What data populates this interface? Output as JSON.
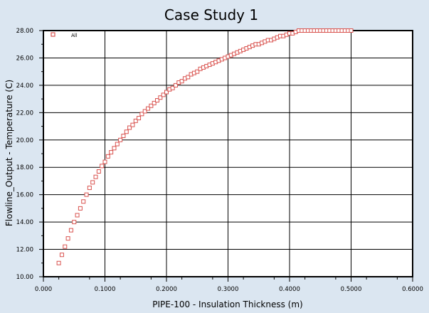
{
  "chart_data": {
    "type": "scatter",
    "title": "Case Study 1",
    "xlabel": "PIPE-100 - Insulation Thickness (m)",
    "ylabel": "Flowline_Output - Temperature (C)",
    "xlim": [
      0,
      0.6
    ],
    "ylim": [
      10,
      28
    ],
    "x_ticks": [
      "0.000",
      "0.1000",
      "0.2000",
      "0.3000",
      "0.4000",
      "0.5000",
      "0.6000"
    ],
    "y_ticks": [
      "10.00",
      "12.00",
      "14.00",
      "16.00",
      "18.00",
      "20.00",
      "22.00",
      "24.00",
      "26.00",
      "28.00"
    ],
    "grid": true,
    "legend": "top-left",
    "series": [
      {
        "name": "All",
        "marker": "open-square",
        "color": "#d9534f",
        "x": [
          0.025,
          0.03,
          0.035,
          0.04,
          0.045,
          0.05,
          0.055,
          0.06,
          0.065,
          0.07,
          0.075,
          0.08,
          0.085,
          0.09,
          0.095,
          0.1,
          0.105,
          0.11,
          0.115,
          0.12,
          0.125,
          0.13,
          0.135,
          0.14,
          0.145,
          0.15,
          0.155,
          0.16,
          0.165,
          0.17,
          0.175,
          0.18,
          0.185,
          0.19,
          0.195,
          0.2,
          0.205,
          0.21,
          0.215,
          0.22,
          0.225,
          0.23,
          0.235,
          0.24,
          0.245,
          0.25,
          0.255,
          0.26,
          0.265,
          0.27,
          0.275,
          0.28,
          0.285,
          0.29,
          0.295,
          0.3,
          0.305,
          0.31,
          0.315,
          0.32,
          0.325,
          0.33,
          0.335,
          0.34,
          0.345,
          0.35,
          0.355,
          0.36,
          0.365,
          0.37,
          0.375,
          0.38,
          0.385,
          0.39,
          0.395,
          0.4,
          0.405,
          0.41,
          0.415,
          0.42,
          0.425,
          0.43,
          0.435,
          0.44,
          0.445,
          0.45,
          0.455,
          0.46,
          0.465,
          0.47,
          0.475,
          0.48,
          0.485,
          0.49,
          0.495,
          0.5
        ],
        "y": [
          11.0,
          11.6,
          12.2,
          12.8,
          13.4,
          14.0,
          14.5,
          15.0,
          15.5,
          16.0,
          16.5,
          16.9,
          17.3,
          17.7,
          18.1,
          18.4,
          18.8,
          19.1,
          19.4,
          19.7,
          20.0,
          20.3,
          20.6,
          20.9,
          21.1,
          21.4,
          21.6,
          21.9,
          22.1,
          22.3,
          22.5,
          22.7,
          22.9,
          23.1,
          23.3,
          23.5,
          23.7,
          23.8,
          24.0,
          24.2,
          24.3,
          24.5,
          24.6,
          24.8,
          24.9,
          25.0,
          25.2,
          25.3,
          25.4,
          25.5,
          25.6,
          25.7,
          25.8,
          25.9,
          26.0,
          26.1,
          26.2,
          26.3,
          26.4,
          26.5,
          26.6,
          26.7,
          26.8,
          26.9,
          27.0,
          27.0,
          27.1,
          27.2,
          27.3,
          27.3,
          27.4,
          27.5,
          27.6,
          27.6,
          27.7,
          27.8,
          27.8,
          27.9,
          28.0,
          28.0,
          28.1,
          28.1,
          28.2,
          28.2,
          28.3,
          28.3,
          28.4,
          28.4,
          28.5,
          28.5,
          28.5,
          28.6,
          28.6,
          28.7,
          28.7,
          28.8
        ]
      }
    ]
  }
}
